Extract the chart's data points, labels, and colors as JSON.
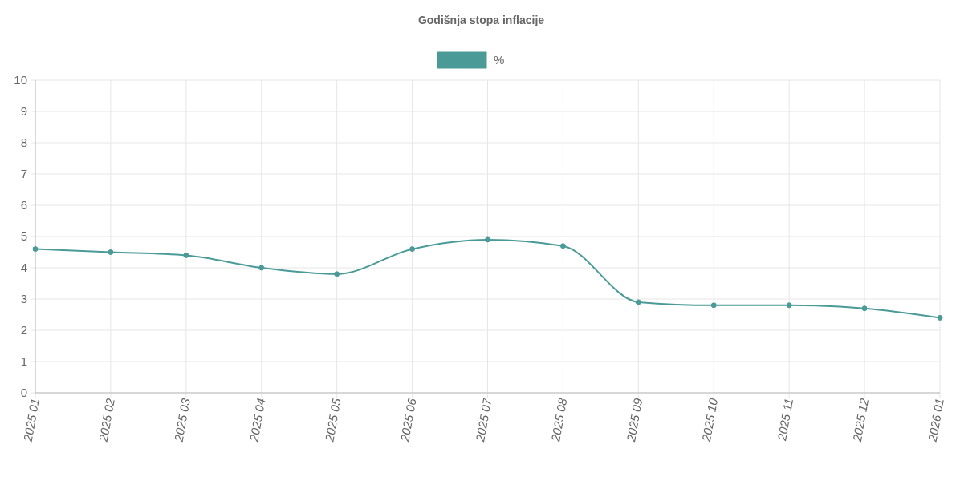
{
  "chart_data": {
    "type": "line",
    "title": "Godišnja stopa inflacije",
    "categories": [
      "2025 01",
      "2025 02",
      "2025 03",
      "2025 04",
      "2025 05",
      "2025 06",
      "2025 07",
      "2025 08",
      "2025 09",
      "2025 10",
      "2025 11",
      "2025 12",
      "2026 01"
    ],
    "series": [
      {
        "name": "%",
        "color": "#4a9a98",
        "values": [
          4.6,
          4.5,
          4.4,
          4.0,
          3.8,
          4.6,
          4.9,
          4.7,
          2.9,
          2.8,
          2.8,
          2.7,
          2.4
        ]
      }
    ],
    "ylim": [
      0,
      10
    ],
    "yticks": [
      0,
      1,
      2,
      3,
      4,
      5,
      6,
      7,
      8,
      9,
      10
    ],
    "grid": true,
    "legend": "top",
    "marker": "circle",
    "line_style": "solid"
  }
}
